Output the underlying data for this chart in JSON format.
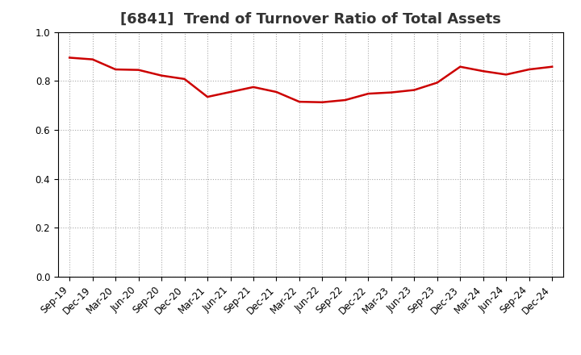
{
  "title": "[6841]  Trend of Turnover Ratio of Total Assets",
  "labels": [
    "Sep-19",
    "Dec-19",
    "Mar-20",
    "Jun-20",
    "Sep-20",
    "Dec-20",
    "Mar-21",
    "Jun-21",
    "Sep-21",
    "Dec-21",
    "Mar-22",
    "Jun-22",
    "Sep-22",
    "Dec-22",
    "Mar-23",
    "Jun-23",
    "Sep-23",
    "Dec-23",
    "Mar-24",
    "Jun-24",
    "Sep-24",
    "Dec-24"
  ],
  "values": [
    0.895,
    0.888,
    0.847,
    0.845,
    0.822,
    0.808,
    0.735,
    0.755,
    0.775,
    0.755,
    0.715,
    0.713,
    0.722,
    0.748,
    0.753,
    0.763,
    0.793,
    0.858,
    0.84,
    0.826,
    0.847,
    0.858
  ],
  "line_color": "#cc0000",
  "line_width": 1.8,
  "ylim": [
    0.0,
    1.0
  ],
  "yticks": [
    0.0,
    0.2,
    0.4,
    0.6,
    0.8,
    1.0
  ],
  "grid_color": "#aaaaaa",
  "background_color": "#ffffff",
  "title_fontsize": 13,
  "tick_fontsize": 8.5,
  "title_color": "#333333"
}
